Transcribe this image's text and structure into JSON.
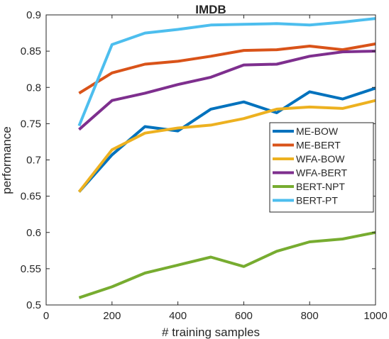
{
  "chart_data": {
    "type": "line",
    "title": "IMDB",
    "xlabel": "# training samples",
    "ylabel": "performance",
    "xlim": [
      0,
      1000
    ],
    "ylim": [
      0.5,
      0.9
    ],
    "xticks": [
      0,
      200,
      400,
      600,
      800,
      1000
    ],
    "yticks": [
      0.5,
      0.55,
      0.6,
      0.65,
      0.7,
      0.75,
      0.8,
      0.85,
      0.9
    ],
    "xtick_labels": [
      "0",
      "200",
      "400",
      "600",
      "800",
      "1000"
    ],
    "ytick_labels": [
      "0.5",
      "0.55",
      "0.6",
      "0.65",
      "0.7",
      "0.75",
      "0.8",
      "0.85",
      "0.9"
    ],
    "grid": false,
    "legend_position": "right",
    "x": [
      100,
      200,
      300,
      400,
      500,
      600,
      700,
      800,
      900,
      1000
    ],
    "series": [
      {
        "name": "ME-BOW",
        "color": "#0072BD",
        "values": [
          0.656,
          0.707,
          0.746,
          0.74,
          0.77,
          0.78,
          0.765,
          0.794,
          0.784,
          0.799
        ]
      },
      {
        "name": "ME-BERT",
        "color": "#D95319",
        "values": [
          0.792,
          0.82,
          0.832,
          0.836,
          0.843,
          0.851,
          0.852,
          0.857,
          0.852,
          0.86
        ]
      },
      {
        "name": "WFA-BOW",
        "color": "#EDB120",
        "values": [
          0.656,
          0.714,
          0.737,
          0.744,
          0.748,
          0.757,
          0.77,
          0.773,
          0.771,
          0.782
        ]
      },
      {
        "name": "WFA-BERT",
        "color": "#7E2F8E",
        "values": [
          0.742,
          0.782,
          0.792,
          0.804,
          0.814,
          0.831,
          0.832,
          0.843,
          0.849,
          0.85
        ]
      },
      {
        "name": "BERT-NPT",
        "color": "#77AC30",
        "values": [
          0.51,
          0.525,
          0.544,
          0.555,
          0.566,
          0.553,
          0.574,
          0.587,
          0.591,
          0.6
        ]
      },
      {
        "name": "BERT-PT",
        "color": "#4DBEEE",
        "values": [
          0.747,
          0.859,
          0.875,
          0.88,
          0.886,
          0.887,
          0.888,
          0.886,
          0.89,
          0.895
        ]
      }
    ]
  }
}
